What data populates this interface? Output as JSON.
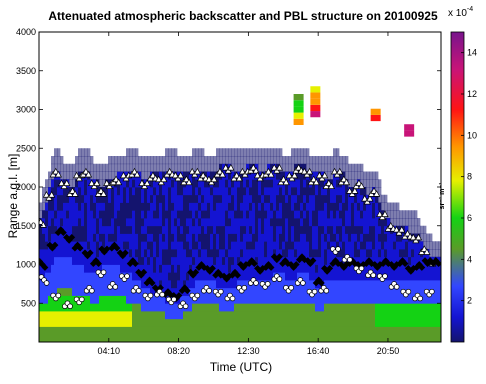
{
  "chart_data": {
    "type": "heatmap",
    "title": "Attenuated atmospheric backscatter and PBL structure on 20100925",
    "xlabel": "Time (UTC)",
    "ylabel": "Range a.g.l. [m]",
    "x_ticks": [
      "04:10",
      "08:20",
      "12:30",
      "16:40",
      "20:50"
    ],
    "x_tick_hours": [
      4.1667,
      8.3333,
      12.5,
      16.6667,
      20.8333
    ],
    "xlim_hours": [
      0,
      24
    ],
    "ylim": [
      0,
      4000
    ],
    "y_ticks": [
      500,
      1000,
      1500,
      2000,
      2500,
      3000,
      3500,
      4000
    ],
    "colorbar": {
      "range": [
        0,
        15
      ],
      "ticks": [
        2,
        4,
        6,
        8,
        10,
        12,
        14
      ],
      "scale_label": "x 10",
      "scale_exponent": "-4",
      "unit_label": "sr⁻¹ m⁻¹",
      "colors": [
        "#14146e",
        "#1414d2",
        "#3246ff",
        "#5a9b28",
        "#14d214",
        "#e6f000",
        "#ff9600",
        "#ff1414",
        "#c81478",
        "#78148c"
      ]
    },
    "series": [
      {
        "marker": "triangle",
        "x_hours": [
          0.1,
          0.6,
          1.0,
          1.5,
          2.0,
          2.4,
          2.8,
          3.3,
          3.7,
          4.2,
          4.6,
          5.2,
          5.7,
          6.3,
          6.8,
          7.3,
          7.8,
          8.3,
          8.8,
          9.3,
          9.8,
          10.3,
          10.8,
          11.3,
          11.8,
          12.3,
          12.8,
          13.2,
          13.7,
          14.2,
          14.6,
          15.1,
          15.5,
          16.0,
          16.4,
          16.9,
          17.3,
          17.8,
          18.2,
          18.7,
          19.1,
          19.6,
          20.0,
          20.5,
          21.0,
          21.5,
          22.0,
          22.5,
          23.0,
          23.5
        ],
        "range_m": [
          1550,
          1900,
          2200,
          2050,
          1950,
          2150,
          2200,
          2050,
          1950,
          2050,
          2100,
          2150,
          2200,
          2050,
          2150,
          2100,
          2200,
          2150,
          2100,
          2200,
          2150,
          2100,
          2200,
          2250,
          2150,
          2200,
          2250,
          2150,
          2200,
          2250,
          2100,
          2150,
          2250,
          2200,
          2100,
          2150,
          2050,
          2200,
          2100,
          1950,
          2050,
          1850,
          1950,
          1650,
          1500,
          1450,
          1400,
          1350,
          1200,
          1050
        ]
      },
      {
        "marker": "diamond",
        "x_hours": [
          0.2,
          0.8,
          1.3,
          1.8,
          2.3,
          2.9,
          3.4,
          3.9,
          4.5,
          5.0,
          5.6,
          6.1,
          6.6,
          7.1,
          7.7,
          8.2,
          8.7,
          9.2,
          9.7,
          10.2,
          10.7,
          11.2,
          11.7,
          12.2,
          12.7,
          13.2,
          13.7,
          14.2,
          14.7,
          15.2,
          15.7,
          16.2,
          16.7,
          17.2,
          17.7,
          18.2,
          18.7,
          19.2,
          19.7,
          20.2,
          20.7,
          21.2,
          21.7,
          22.2,
          22.7,
          23.2,
          23.7
        ],
        "range_m": [
          1000,
          1250,
          1450,
          1350,
          1250,
          1150,
          1050,
          1200,
          1250,
          1150,
          1050,
          900,
          800,
          700,
          650,
          600,
          700,
          900,
          1000,
          950,
          900,
          850,
          900,
          1000,
          1050,
          950,
          1000,
          1100,
          1050,
          1000,
          1100,
          1050,
          800,
          950,
          1050,
          1000,
          1050,
          1000,
          1050,
          1000,
          1050,
          1000,
          1050,
          950,
          1000,
          1050,
          1050
        ]
      },
      {
        "marker": "circle",
        "x_hours": [
          0.3,
          1.0,
          1.7,
          2.4,
          3.0,
          3.7,
          4.4,
          5.1,
          5.8,
          6.5,
          7.2,
          7.9,
          8.6,
          9.3,
          10.0,
          10.7,
          11.4,
          12.1,
          12.8,
          13.5,
          14.2,
          14.9,
          15.6,
          16.3,
          17.0,
          17.7,
          18.4,
          19.1,
          19.8,
          20.5,
          21.2,
          21.9,
          22.6,
          23.3
        ],
        "range_m": [
          800,
          600,
          500,
          550,
          700,
          900,
          750,
          850,
          700,
          600,
          650,
          550,
          500,
          600,
          700,
          650,
          600,
          700,
          800,
          750,
          850,
          700,
          800,
          650,
          700,
          1200,
          1100,
          950,
          900,
          850,
          750,
          650,
          600,
          650
        ]
      }
    ]
  }
}
